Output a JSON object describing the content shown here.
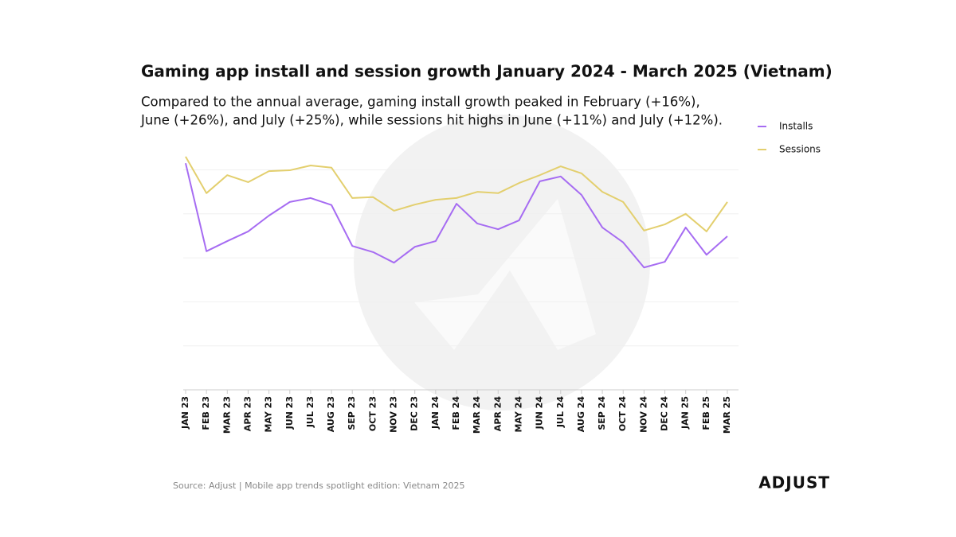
{
  "chart_data": {
    "type": "line",
    "title": "Gaming app install and session growth January 2024 - March 2025 (Vietnam)",
    "subtitle": [
      "Compared to the annual average, gaming install growth peaked in February (+16%),",
      "June (+26%), and July (+25%), while sessions hit highs in June (+11%) and July (+12%)."
    ],
    "categories": [
      "JAN 23",
      "FEB 23",
      "MAR 23",
      "APR 23",
      "MAY 23",
      "JUN 23",
      "JUL 23",
      "AUG 23",
      "SEP 23",
      "OCT 23",
      "NOV 23",
      "DEC 23",
      "JAN 24",
      "FEB 24",
      "MAR 24",
      "APR 24",
      "MAY 24",
      "JUN 24",
      "JUL 24",
      "AUG 24",
      "SEP 24",
      "OCT 24",
      "NOV 24",
      "DEC 24",
      "JAN 25",
      "FEB 25",
      "MAR 25"
    ],
    "series": [
      {
        "name": "Installs",
        "color": "#a66cf2",
        "values": [
          5.15,
          3.15,
          3.38,
          3.6,
          3.96,
          4.27,
          4.36,
          4.2,
          3.27,
          3.13,
          2.89,
          3.25,
          3.38,
          4.23,
          3.78,
          3.65,
          3.85,
          4.74,
          4.85,
          4.43,
          3.69,
          3.35,
          2.78,
          2.91,
          3.69,
          3.07,
          3.49
        ]
      },
      {
        "name": "Sessions",
        "color": "#e3cf6e",
        "values": [
          5.3,
          4.47,
          4.88,
          4.72,
          4.97,
          4.99,
          5.1,
          5.05,
          4.36,
          4.38,
          4.07,
          4.21,
          4.32,
          4.36,
          4.5,
          4.47,
          4.7,
          4.88,
          5.08,
          4.92,
          4.5,
          4.27,
          3.62,
          3.76,
          4.0,
          3.6,
          4.27
        ]
      }
    ],
    "ylim": [
      0,
      6
    ],
    "yticks": [
      1,
      2,
      3,
      4,
      5
    ],
    "grid": true,
    "show_tick_labels": false,
    "legend": "upper right",
    "source": "Source: Adjust | Mobile app trends spotlight edition: Vietnam 2025",
    "logo": "ADJUST"
  }
}
